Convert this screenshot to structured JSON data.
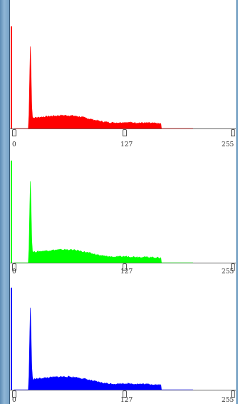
{
  "histograms": [
    {
      "channel": "red",
      "color": "#ff0000",
      "axis_color": "#cc0000",
      "ticks": [
        "0",
        "127",
        "255"
      ],
      "peak_position": 0.09,
      "peak_height": 0.62
    },
    {
      "channel": "green",
      "color": "#00ff00",
      "axis_color": "#00cc00",
      "ticks": [
        "0",
        "127",
        "255"
      ],
      "peak_position": 0.09,
      "peak_height": 0.62
    },
    {
      "channel": "blue",
      "color": "#0000ff",
      "axis_color": "#0000cc",
      "ticks": [
        "0",
        "127",
        "255"
      ],
      "peak_position": 0.09,
      "peak_height": 0.62
    }
  ]
}
